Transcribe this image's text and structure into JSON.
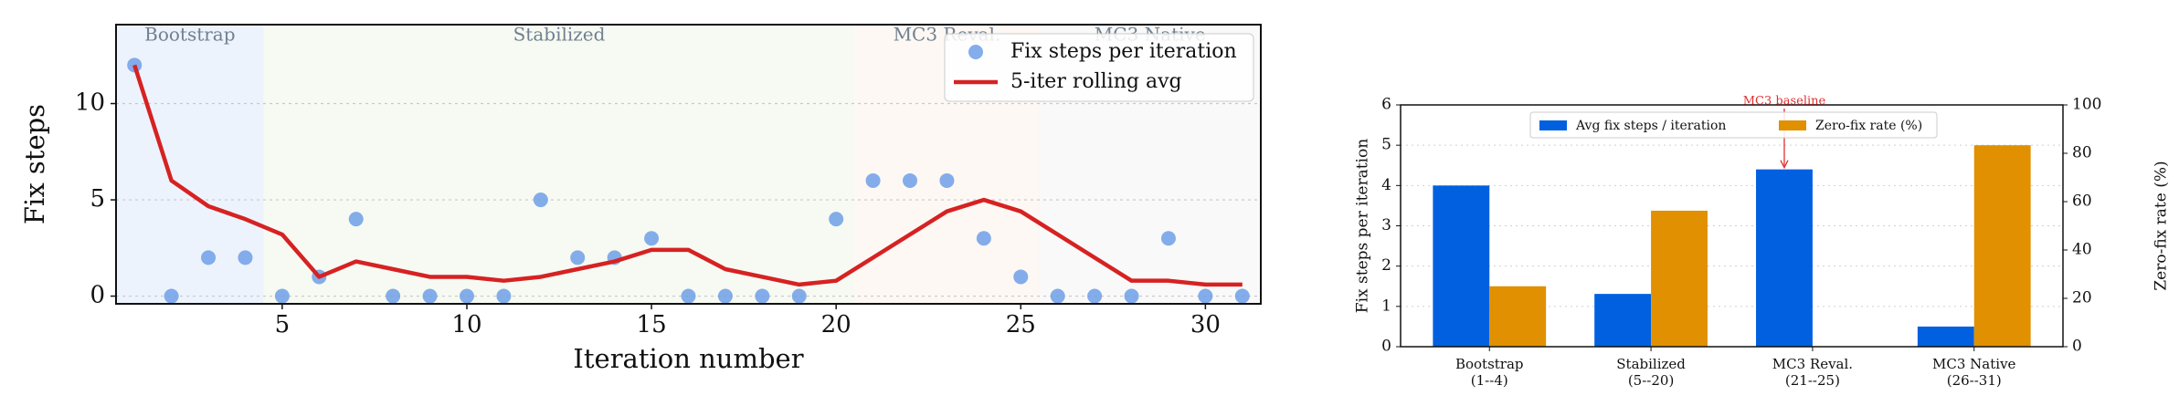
{
  "chart_data": [
    {
      "type": "scatter",
      "x": [
        1,
        2,
        3,
        4,
        5,
        6,
        7,
        8,
        9,
        10,
        11,
        12,
        13,
        14,
        15,
        16,
        17,
        18,
        19,
        20,
        21,
        22,
        23,
        24,
        25,
        26,
        27,
        28,
        29,
        30,
        31
      ],
      "series": [
        {
          "name": "Fix steps per iteration",
          "color": "#6f9fe8",
          "style": "marker",
          "values": [
            12,
            0,
            2,
            2,
            0,
            1,
            4,
            0,
            0,
            0,
            0,
            5,
            2,
            2,
            3,
            0,
            0,
            0,
            0,
            4,
            6,
            6,
            6,
            3,
            1,
            0,
            0,
            0,
            3,
            0,
            0
          ]
        },
        {
          "name": "5-iter rolling avg",
          "color": "#d62222",
          "style": "line",
          "values": [
            12,
            6,
            4.67,
            4,
            3.2,
            1,
            1.8,
            1.4,
            1,
            1,
            0.8,
            1,
            1.4,
            1.8,
            2.4,
            2.4,
            1.4,
            1,
            0.6,
            0.8,
            2,
            3.2,
            4.4,
            5,
            4.4,
            3.2,
            2,
            0.8,
            0.8,
            0.6,
            0.6
          ]
        }
      ],
      "phases": [
        {
          "label": "Bootstrap",
          "start": 0.5,
          "end": 4.5,
          "color": "#edf3fc"
        },
        {
          "label": "Stabilized",
          "start": 4.5,
          "end": 20.5,
          "color": "#f7faf2"
        },
        {
          "label": "MC3 Reval.",
          "start": 20.5,
          "end": 25.5,
          "color": "#fdf8f4"
        },
        {
          "label": "MC3 Native",
          "start": 25.5,
          "end": 31.5,
          "color": "#f8f9f8"
        }
      ],
      "xlabel": "Iteration number",
      "ylabel": "Fix steps",
      "xlim": [
        0.5,
        31.5
      ],
      "ylim": [
        -0.4,
        14.1
      ],
      "xticks": [
        5,
        10,
        15,
        20,
        25,
        30
      ],
      "yticks": [
        0,
        5,
        10
      ],
      "grid": true,
      "legend": "upper right"
    },
    {
      "type": "bar",
      "categories": [
        [
          "Bootstrap",
          "(1--4)"
        ],
        [
          "Stabilized",
          "(5--20)"
        ],
        [
          "MC3 Reval.",
          "(21--25)"
        ],
        [
          "MC3 Native",
          "(26--31)"
        ]
      ],
      "series": [
        {
          "name": "Avg fix steps / iteration",
          "color": "#0060df",
          "values": [
            4,
            1.31,
            4.4,
            0.5
          ]
        },
        {
          "name": "Zero-fix rate (%)",
          "color": "#e09000",
          "axis": "y2",
          "values": [
            25,
            56.25,
            0,
            83.33
          ]
        }
      ],
      "ylabel": "Fix steps per iteration",
      "y2label": "Zero-fix rate (%)",
      "ylim": [
        0,
        6
      ],
      "yticks": [
        0,
        1,
        2,
        3,
        4,
        5,
        6
      ],
      "y2lim": [
        0,
        100
      ],
      "y2ticks": [
        0,
        20,
        40,
        60,
        80,
        100
      ],
      "grid": true,
      "legend": "upper center",
      "annotations": [
        {
          "text": "MC3 baseline",
          "x": 2,
          "y": 4.4,
          "color": "#e03030"
        }
      ]
    }
  ]
}
